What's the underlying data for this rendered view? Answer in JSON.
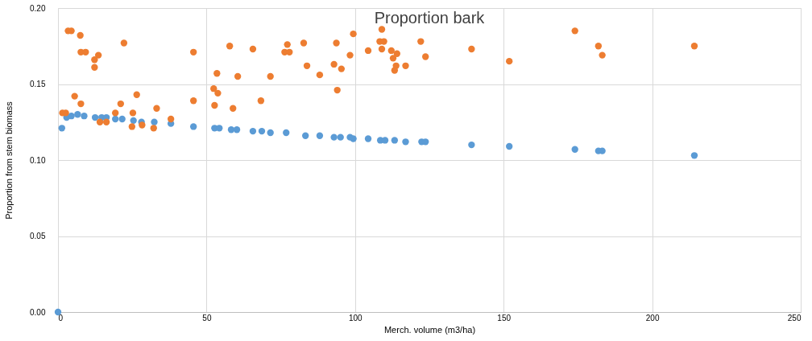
{
  "chart_data": {
    "type": "scatter",
    "title": "Proportion bark",
    "xlabel": "Merch. volume (m3/ha)",
    "ylabel": "Proportion from stem biomass",
    "xlim": [
      0,
      250
    ],
    "xticks": [
      0,
      50,
      100,
      150,
      200,
      250
    ],
    "ylim": [
      0,
      0.2
    ],
    "yticks": [
      {
        "value": 0,
        "label": "0.00"
      },
      {
        "value": 0.05,
        "label": "0.05"
      },
      {
        "value": 0.1,
        "label": "0.10"
      },
      {
        "value": 0.15,
        "label": "0.15"
      },
      {
        "value": 0.2,
        "label": "0.20"
      }
    ],
    "grid": true,
    "legend": false,
    "marker": "circle",
    "series": [
      {
        "color": "#5b9bd5",
        "x": [
          0,
          1.3,
          2.9,
          4.5,
          6.6,
          8.8,
          12.5,
          14.7,
          16.3,
          19.3,
          21.6,
          25.4,
          28.1,
          32.4,
          38.0,
          45.6,
          52.7,
          54.3,
          58.3,
          60.2,
          65.6,
          68.6,
          71.5,
          76.8,
          83.3,
          88.1,
          92.9,
          95.1,
          98.3,
          99.4,
          104.4,
          108.5,
          110.1,
          113.3,
          117.0,
          122.4,
          123.7,
          139.2,
          151.9,
          174.0,
          181.9,
          183.2,
          214.2
        ],
        "values": [
          0.0,
          0.121,
          0.128,
          0.129,
          0.13,
          0.129,
          0.128,
          0.128,
          0.128,
          0.127,
          0.127,
          0.126,
          0.125,
          0.125,
          0.124,
          0.122,
          0.121,
          0.121,
          0.12,
          0.12,
          0.119,
          0.119,
          0.118,
          0.118,
          0.116,
          0.116,
          0.115,
          0.115,
          0.115,
          0.114,
          0.114,
          0.113,
          0.113,
          0.113,
          0.112,
          0.112,
          0.112,
          0.11,
          0.109,
          0.107,
          0.106,
          0.106,
          0.103
        ]
      },
      {
        "color": "#ed7d31",
        "x": [
          3.4,
          4.5,
          7.5,
          7.7,
          9.3,
          13.6,
          12.3,
          12.3,
          22.2,
          45.6,
          57.8,
          53.5,
          5.6,
          7.7,
          26.5,
          21.1,
          1.5,
          2.6,
          19.3,
          25.2,
          33.2,
          45.6,
          52.4,
          53.8,
          52.7,
          14.1,
          16.3,
          24.9,
          28.3,
          32.2,
          38.0,
          65.6,
          77.2,
          76.3,
          77.9,
          82.7,
          93.7,
          99.4,
          109.0,
          108.3,
          109.7,
          109.0,
          104.4,
          112.2,
          114.1,
          112.8,
          113.8,
          113.3,
          117.0,
          122.1,
          123.7,
          139.2,
          98.3,
          92.9,
          95.4,
          83.8,
          88.1,
          94.0,
          60.5,
          71.5,
          58.9,
          68.3,
          151.9,
          174.0,
          181.9,
          183.2,
          214.2
        ],
        "values": [
          0.185,
          0.185,
          0.182,
          0.171,
          0.171,
          0.169,
          0.166,
          0.161,
          0.177,
          0.171,
          0.175,
          0.157,
          0.142,
          0.137,
          0.143,
          0.137,
          0.131,
          0.131,
          0.131,
          0.131,
          0.134,
          0.139,
          0.147,
          0.144,
          0.136,
          0.125,
          0.125,
          0.122,
          0.123,
          0.121,
          0.127,
          0.173,
          0.176,
          0.171,
          0.171,
          0.177,
          0.177,
          0.183,
          0.186,
          0.178,
          0.178,
          0.173,
          0.172,
          0.172,
          0.17,
          0.167,
          0.162,
          0.159,
          0.162,
          0.178,
          0.168,
          0.173,
          0.169,
          0.163,
          0.16,
          0.162,
          0.156,
          0.146,
          0.155,
          0.155,
          0.134,
          0.139,
          0.165,
          0.185,
          0.175,
          0.169,
          0.175
        ]
      }
    ]
  }
}
